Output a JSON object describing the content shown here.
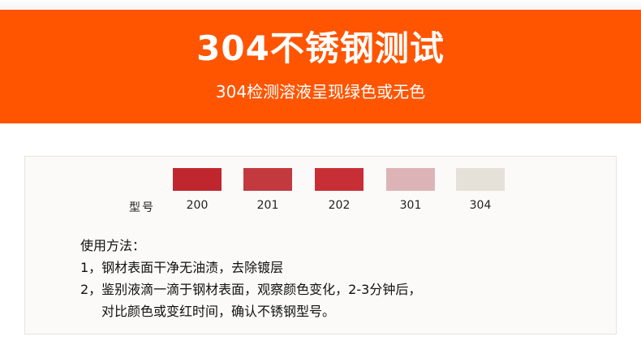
{
  "banner": {
    "title": "304不锈钢测试",
    "subtitle": "304检测溶液呈现绿色或无色",
    "color": "#ff5500"
  },
  "chart": {
    "model_label": "型号",
    "swatches": [
      {
        "label": "200",
        "color": "#c0262e"
      },
      {
        "label": "201",
        "color": "#c23a3e"
      },
      {
        "label": "202",
        "color": "#c82e36"
      },
      {
        "label": "301",
        "color": "#dcb4b8"
      },
      {
        "label": "304",
        "color": "#e6e1d8"
      }
    ]
  },
  "usage": {
    "heading": "使用方法：",
    "step1": "1，钢材表面干净无油渍，去除镀层",
    "step2_line1": "2，鉴别液滴一滴于钢材表面，观察颜色变化，2-3分钟后，",
    "step2_line2": "对比颜色或变红时间，确认不锈钢型号。"
  }
}
